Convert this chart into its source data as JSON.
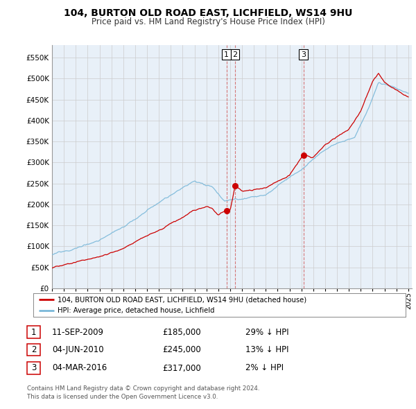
{
  "title1": "104, BURTON OLD ROAD EAST, LICHFIELD, WS14 9HU",
  "title2": "Price paid vs. HM Land Registry's House Price Index (HPI)",
  "ytick_vals": [
    0,
    50000,
    100000,
    150000,
    200000,
    250000,
    300000,
    350000,
    400000,
    450000,
    500000,
    550000
  ],
  "ylim": [
    0,
    580000
  ],
  "xlim_start": 1995.0,
  "xlim_end": 2025.3,
  "hpi_color": "#7ab8d9",
  "price_color": "#cc0000",
  "vline_color": "#cc0000",
  "grid_color": "#cccccc",
  "background_color": "#ffffff",
  "chart_bg": "#e8f0f8",
  "sale1_x": 2009.69,
  "sale1_y": 185000,
  "sale2_x": 2010.42,
  "sale2_y": 245000,
  "sale3_x": 2016.17,
  "sale3_y": 317000,
  "legend_label_price": "104, BURTON OLD ROAD EAST, LICHFIELD, WS14 9HU (detached house)",
  "legend_label_hpi": "HPI: Average price, detached house, Lichfield",
  "table_rows": [
    [
      "1",
      "11-SEP-2009",
      "£185,000",
      "29% ↓ HPI"
    ],
    [
      "2",
      "04-JUN-2010",
      "£245,000",
      "13% ↓ HPI"
    ],
    [
      "3",
      "04-MAR-2016",
      "£317,000",
      "2% ↓ HPI"
    ]
  ],
  "footnote": "Contains HM Land Registry data © Crown copyright and database right 2024.\nThis data is licensed under the Open Government Licence v3.0."
}
